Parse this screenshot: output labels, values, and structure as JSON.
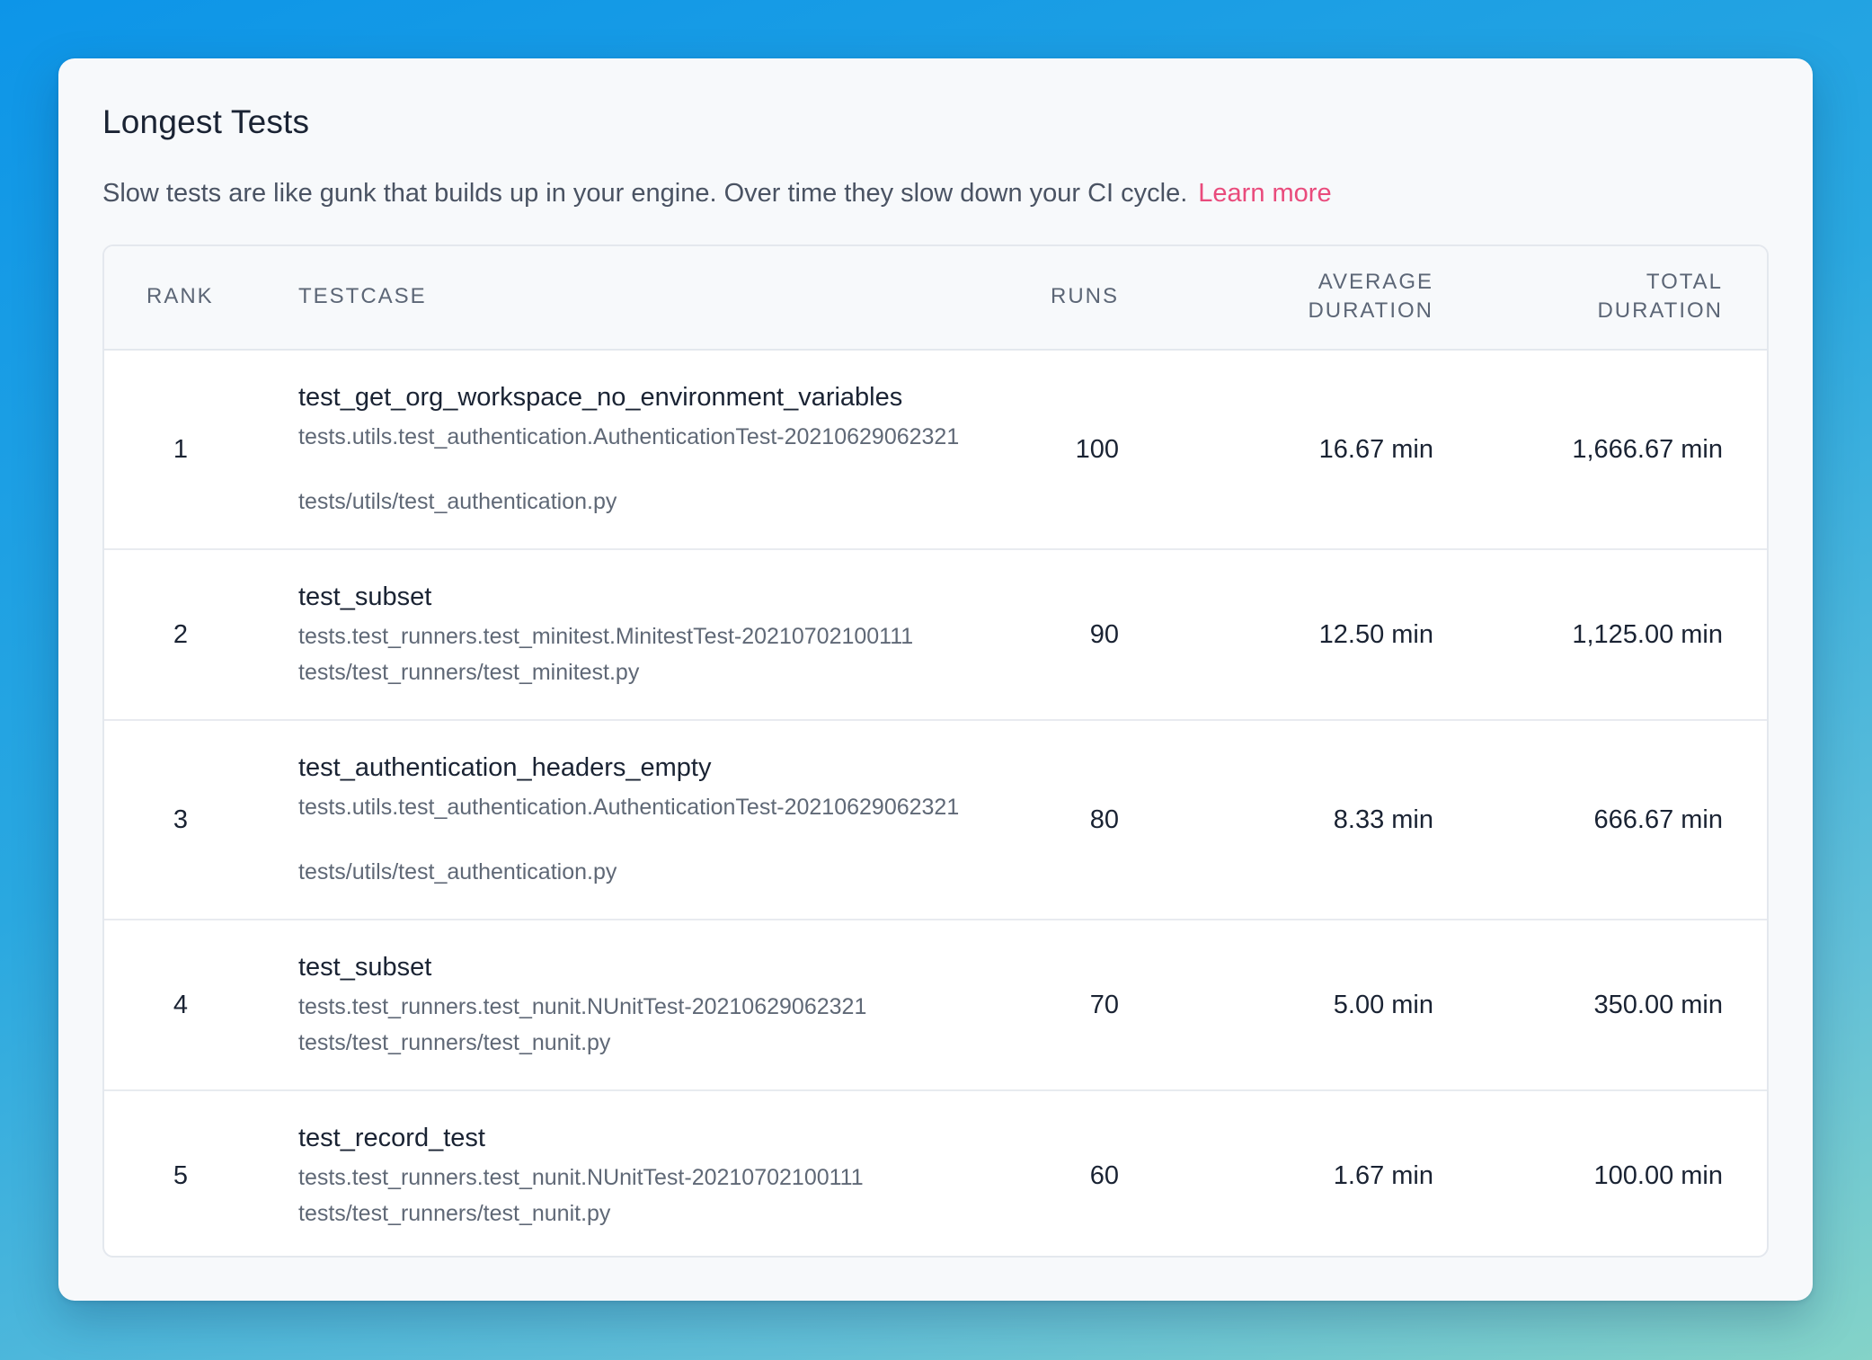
{
  "card": {
    "title": "Longest Tests",
    "description": "Slow tests are like gunk that builds up in your engine. Over time they slow down your CI cycle.",
    "learn_more": "Learn more"
  },
  "table": {
    "headers": {
      "rank": "RANK",
      "testcase": "TESTCASE",
      "runs": "RUNS",
      "avg_line1": "AVERAGE",
      "avg_line2": "DURATION",
      "total_line1": "TOTAL",
      "total_line2": "DURATION"
    },
    "rows": [
      {
        "rank": "1",
        "name": "test_get_org_workspace_no_environment_variables",
        "id": "tests.utils.test_authentication.AuthenticationTest-20210629062321",
        "path": "tests/utils/test_authentication.py",
        "runs": "100",
        "avg": "16.67 min",
        "total": "1,666.67 min"
      },
      {
        "rank": "2",
        "name": "test_subset",
        "id": "tests.test_runners.test_minitest.MinitestTest-20210702100111",
        "path": "tests/test_runners/test_minitest.py",
        "runs": "90",
        "avg": "12.50 min",
        "total": "1,125.00 min"
      },
      {
        "rank": "3",
        "name": "test_authentication_headers_empty",
        "id": "tests.utils.test_authentication.AuthenticationTest-20210629062321",
        "path": "tests/utils/test_authentication.py",
        "runs": "80",
        "avg": "8.33 min",
        "total": "666.67 min"
      },
      {
        "rank": "4",
        "name": "test_subset",
        "id": "tests.test_runners.test_nunit.NUnitTest-20210629062321",
        "path": "tests/test_runners/test_nunit.py",
        "runs": "70",
        "avg": "5.00 min",
        "total": "350.00 min"
      },
      {
        "rank": "5",
        "name": "test_record_test",
        "id": "tests.test_runners.test_nunit.NUnitTest-20210702100111",
        "path": "tests/test_runners/test_nunit.py",
        "runs": "60",
        "avg": "1.67 min",
        "total": "100.00 min"
      }
    ]
  }
}
